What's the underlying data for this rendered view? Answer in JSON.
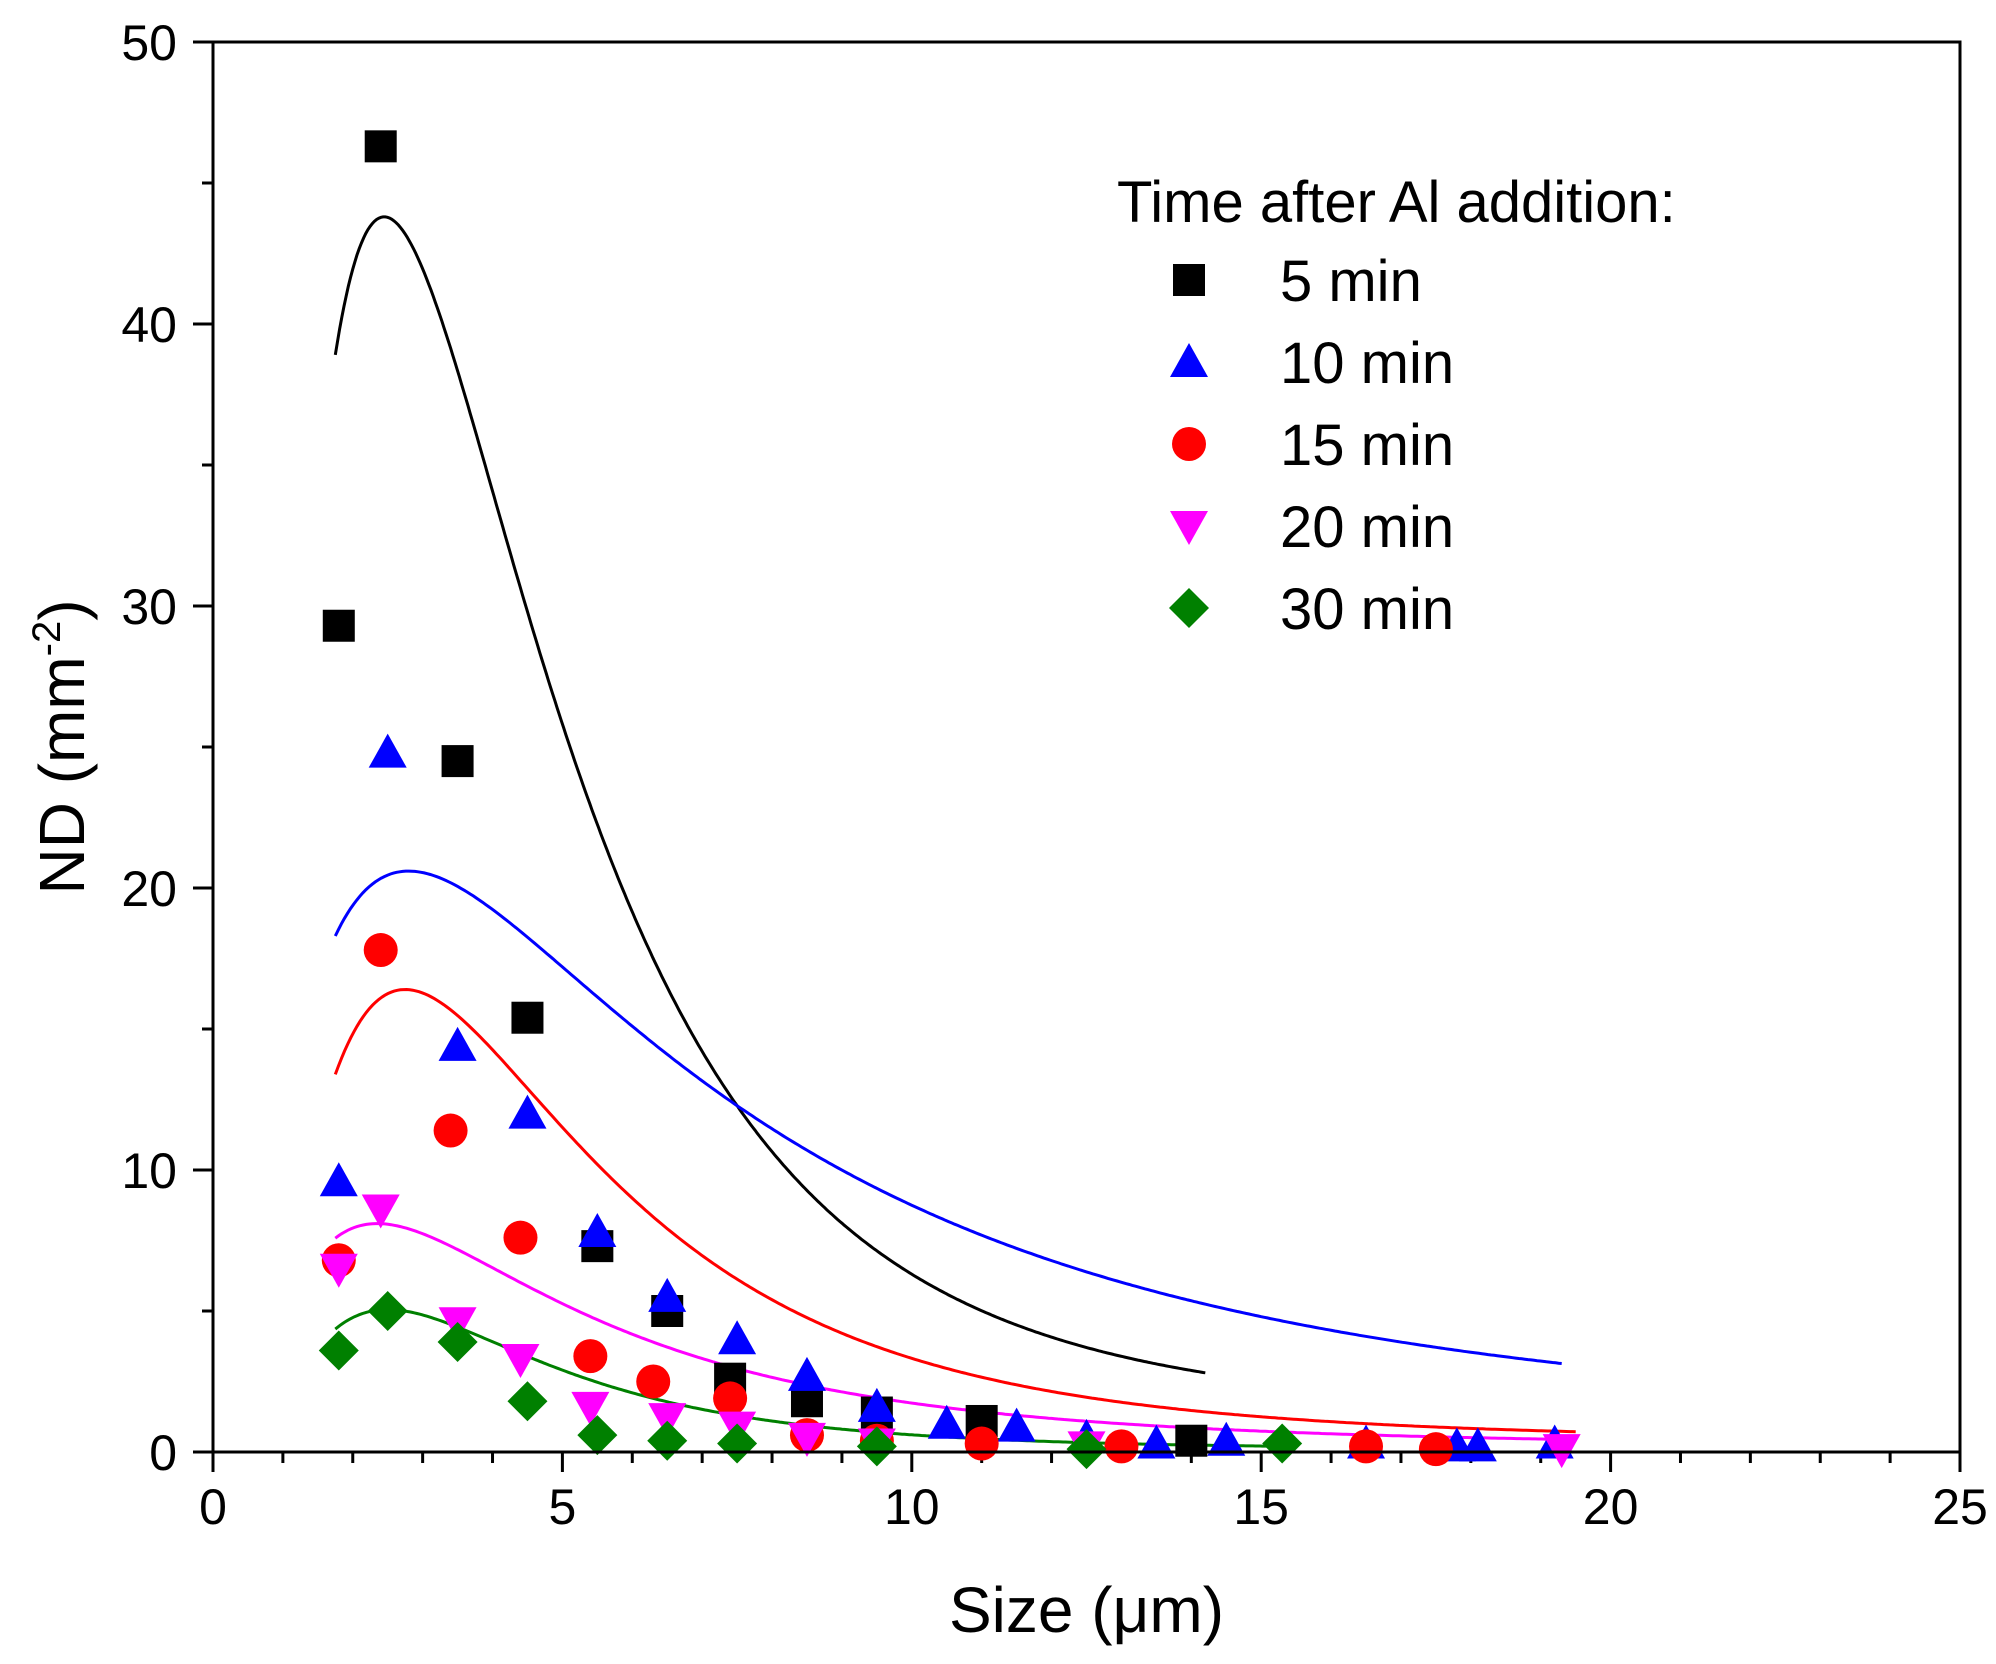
{
  "chart_data": {
    "type": "scatter",
    "title": "",
    "xlabel": "Size (μm)",
    "ylabel_main": "ND (mm",
    "ylabel_sup": "-2",
    "ylabel_tail": ")",
    "xlim": [
      0,
      25
    ],
    "ylim": [
      0,
      50
    ],
    "x_ticks": [
      0,
      5,
      10,
      15,
      20,
      25
    ],
    "x_tick_labels": [
      "0",
      "5",
      "10",
      "15",
      "20",
      "25"
    ],
    "x_minor_ticks": [
      1,
      2,
      3,
      4,
      6,
      7,
      8,
      9,
      11,
      12,
      13,
      14,
      16,
      17,
      18,
      19,
      21,
      22,
      23,
      24
    ],
    "y_ticks": [
      0,
      10,
      20,
      30,
      40,
      50
    ],
    "y_tick_labels": [
      "0",
      "10",
      "20",
      "30",
      "40",
      "50"
    ],
    "y_minor_ticks": [
      5,
      15,
      25,
      35,
      45
    ],
    "grid": false,
    "legend_title": "Time after Al addition:",
    "legend_position": "top-right",
    "series": [
      {
        "name": "5 min",
        "marker": "square",
        "color": "#000000",
        "points": [
          [
            1.8,
            29.3
          ],
          [
            2.4,
            46.3
          ],
          [
            3.5,
            24.5
          ],
          [
            4.5,
            15.4
          ],
          [
            5.5,
            7.3
          ],
          [
            6.5,
            5.0
          ],
          [
            7.4,
            2.6
          ],
          [
            8.5,
            1.8
          ],
          [
            9.5,
            1.4
          ],
          [
            11.0,
            1.1
          ],
          [
            14.0,
            0.4
          ]
        ],
        "fit": {
          "a": 1.3,
          "b": 42.5,
          "c": 2.45,
          "w": 0.68,
          "xmin": 1.75,
          "xmax": 14.2
        }
      },
      {
        "name": "10 min",
        "marker": "triangle-up",
        "color": "#0000ff",
        "points": [
          [
            1.8,
            9.6
          ],
          [
            2.5,
            24.8
          ],
          [
            3.5,
            14.4
          ],
          [
            4.5,
            12.0
          ],
          [
            5.5,
            7.8
          ],
          [
            6.5,
            5.5
          ],
          [
            7.5,
            4.0
          ],
          [
            8.5,
            2.7
          ],
          [
            9.5,
            1.6
          ],
          [
            10.5,
            1.0
          ],
          [
            11.5,
            0.9
          ],
          [
            12.5,
            0.5
          ],
          [
            13.5,
            0.3
          ],
          [
            14.5,
            0.4
          ],
          [
            16.5,
            0.3
          ],
          [
            17.8,
            0.2
          ],
          [
            18.1,
            0.2
          ],
          [
            19.2,
            0.3
          ]
        ],
        "fit": {
          "a": 0.6,
          "b": 20.0,
          "c": 2.8,
          "w": 0.95,
          "xmin": 1.75,
          "xmax": 19.3
        }
      },
      {
        "name": "15 min",
        "marker": "circle",
        "color": "#ff0000",
        "points": [
          [
            1.8,
            6.8
          ],
          [
            2.4,
            17.8
          ],
          [
            3.4,
            11.4
          ],
          [
            4.4,
            7.6
          ],
          [
            5.4,
            3.4
          ],
          [
            6.3,
            2.5
          ],
          [
            7.4,
            1.9
          ],
          [
            8.5,
            0.6
          ],
          [
            9.5,
            0.4
          ],
          [
            11.0,
            0.3
          ],
          [
            13.0,
            0.2
          ],
          [
            16.5,
            0.2
          ],
          [
            17.5,
            0.1
          ]
        ],
        "fit": {
          "a": 0.4,
          "b": 16.0,
          "c": 2.75,
          "w": 0.7,
          "xmin": 1.75,
          "xmax": 19.5
        }
      },
      {
        "name": "20 min",
        "marker": "triangle-down",
        "color": "#ff00ff",
        "points": [
          [
            1.8,
            6.5
          ],
          [
            2.4,
            8.6
          ],
          [
            3.5,
            4.6
          ],
          [
            4.4,
            3.3
          ],
          [
            5.4,
            1.6
          ],
          [
            6.5,
            1.2
          ],
          [
            7.5,
            0.9
          ],
          [
            8.5,
            0.5
          ],
          [
            9.5,
            0.3
          ],
          [
            12.5,
            0.2
          ],
          [
            19.3,
            0.1
          ]
        ],
        "fit": {
          "a": 0.2,
          "b": 7.9,
          "c": 2.35,
          "w": 0.8,
          "xmin": 1.75,
          "xmax": 19.5
        }
      },
      {
        "name": "30 min",
        "marker": "diamond",
        "color": "#008000",
        "points": [
          [
            1.8,
            3.6
          ],
          [
            2.5,
            5.0
          ],
          [
            3.5,
            3.9
          ],
          [
            4.5,
            1.8
          ],
          [
            5.5,
            0.6
          ],
          [
            6.5,
            0.4
          ],
          [
            7.5,
            0.3
          ],
          [
            9.5,
            0.2
          ],
          [
            12.5,
            0.1
          ],
          [
            15.3,
            0.3
          ]
        ],
        "fit": {
          "a": 0.1,
          "b": 4.95,
          "c": 2.5,
          "w": 0.65,
          "xmin": 1.75,
          "xmax": 15.5
        }
      }
    ]
  }
}
